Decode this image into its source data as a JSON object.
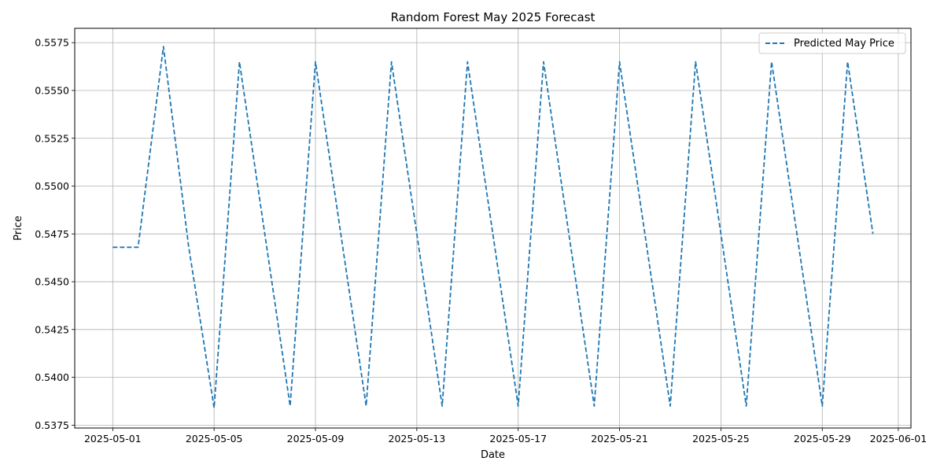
{
  "chart_data": {
    "type": "line",
    "title": "Random Forest May 2025 Forecast",
    "xlabel": "Date",
    "ylabel": "Price",
    "xlim": [
      "2025-04-29T12:00",
      "2025-06-01T12:00"
    ],
    "ylim": [
      0.53735,
      0.55825
    ],
    "x_ticks": [
      "2025-05-01",
      "2025-05-05",
      "2025-05-09",
      "2025-05-13",
      "2025-05-17",
      "2025-05-21",
      "2025-05-25",
      "2025-05-29",
      "2025-06-01"
    ],
    "y_ticks": [
      0.5375,
      0.54,
      0.5425,
      0.545,
      0.5475,
      0.55,
      0.5525,
      0.555,
      0.5575
    ],
    "y_tick_labels": [
      "0.5375",
      "0.5400",
      "0.5425",
      "0.5450",
      "0.5475",
      "0.5500",
      "0.5525",
      "0.5550",
      "0.5575"
    ],
    "grid": true,
    "legend_position": "top-right",
    "series": [
      {
        "name": "Predicted May Price",
        "color": "#1f77b4",
        "line_style": "dashed",
        "x": [
          "2025-05-01",
          "2025-05-02",
          "2025-05-03",
          "2025-05-04",
          "2025-05-05",
          "2025-05-06",
          "2025-05-07",
          "2025-05-08",
          "2025-05-09",
          "2025-05-10",
          "2025-05-11",
          "2025-05-12",
          "2025-05-13",
          "2025-05-14",
          "2025-05-15",
          "2025-05-16",
          "2025-05-17",
          "2025-05-18",
          "2025-05-19",
          "2025-05-20",
          "2025-05-21",
          "2025-05-22",
          "2025-05-23",
          "2025-05-24",
          "2025-05-25",
          "2025-05-26",
          "2025-05-27",
          "2025-05-28",
          "2025-05-29",
          "2025-05-30",
          "2025-05-31"
        ],
        "values": [
          0.5468,
          0.5468,
          0.5573,
          0.5468,
          0.5384,
          0.5565,
          0.5475,
          0.5385,
          0.5565,
          0.5475,
          0.5385,
          0.5565,
          0.5475,
          0.5385,
          0.5565,
          0.5475,
          0.5385,
          0.5565,
          0.5475,
          0.5385,
          0.5565,
          0.5475,
          0.5385,
          0.5565,
          0.5475,
          0.5385,
          0.5565,
          0.5475,
          0.5385,
          0.5565,
          0.5475
        ]
      }
    ]
  }
}
